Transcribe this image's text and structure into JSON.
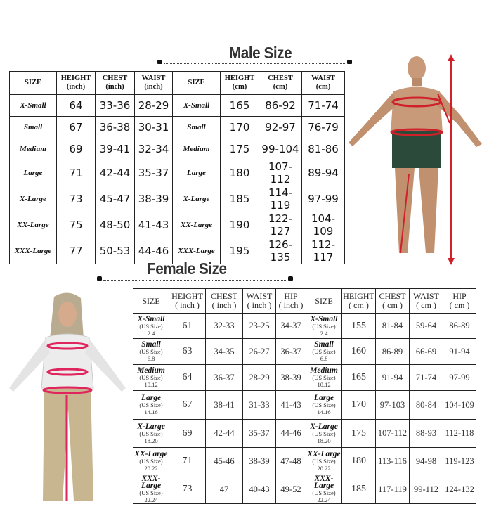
{
  "male": {
    "title": "Male Size",
    "headers": [
      [
        "SIZE",
        ""
      ],
      [
        "HEIGHT",
        "(inch)"
      ],
      [
        "CHEST",
        "(inch)"
      ],
      [
        "WAIST",
        "(inch)"
      ],
      [
        "SIZE",
        ""
      ],
      [
        "HEIGHT",
        "(cm)"
      ],
      [
        "CHEST",
        "(cm)"
      ],
      [
        "WAIST",
        "(cm)"
      ]
    ],
    "rows": [
      [
        "X-Small",
        "64",
        "33-36",
        "28-29",
        "X-Small",
        "165",
        "86-92",
        "71-74"
      ],
      [
        "Small",
        "67",
        "36-38",
        "30-31",
        "Small",
        "170",
        "92-97",
        "76-79"
      ],
      [
        "Medium",
        "69",
        "39-41",
        "32-34",
        "Medium",
        "175",
        "99-104",
        "81-86"
      ],
      [
        "Large",
        "71",
        "42-44",
        "35-37",
        "Large",
        "180",
        "107-112",
        "89-94"
      ],
      [
        "X-Large",
        "73",
        "45-47",
        "38-39",
        "X-Large",
        "185",
        "114-119",
        "97-99"
      ],
      [
        "XX-Large",
        "75",
        "48-50",
        "41-43",
        "XX-Large",
        "190",
        "122-127",
        "104-109"
      ],
      [
        "XXX-Large",
        "77",
        "50-53",
        "44-46",
        "XXX-Large",
        "195",
        "126-135",
        "112-117"
      ]
    ]
  },
  "female": {
    "title": "Female Size",
    "headers": [
      [
        "SIZE",
        ""
      ],
      [
        "HEIGHT",
        "( inch )"
      ],
      [
        "CHEST",
        "( inch )"
      ],
      [
        "WAIST",
        "( inch )"
      ],
      [
        "HIP",
        "( inch )"
      ],
      [
        "SIZE",
        ""
      ],
      [
        "HEIGHT",
        "( cm )"
      ],
      [
        "CHEST",
        "( cm )"
      ],
      [
        "WAIST",
        "( cm )"
      ],
      [
        "HIP",
        "( cm )"
      ]
    ],
    "us_label": "(US Size)",
    "rows": [
      {
        "size": "X-Small",
        "us": "2.4",
        "inch": [
          "61",
          "32-33",
          "23-25",
          "34-37"
        ],
        "cm": [
          "155",
          "81-84",
          "59-64",
          "86-89"
        ]
      },
      {
        "size": "Small",
        "us": "6.8",
        "inch": [
          "63",
          "34-35",
          "26-27",
          "36-37"
        ],
        "cm": [
          "160",
          "86-89",
          "66-69",
          "91-94"
        ]
      },
      {
        "size": "Medium",
        "us": "10.12",
        "inch": [
          "64",
          "36-37",
          "28-29",
          "38-39"
        ],
        "cm": [
          "165",
          "91-94",
          "71-74",
          "97-99"
        ]
      },
      {
        "size": "Large",
        "us": "14.16",
        "inch": [
          "67",
          "38-41",
          "31-33",
          "41-43"
        ],
        "cm": [
          "170",
          "97-103",
          "80-84",
          "104-109"
        ]
      },
      {
        "size": "X-Large",
        "us": "18.20",
        "inch": [
          "69",
          "42-44",
          "35-37",
          "44-46"
        ],
        "cm": [
          "175",
          "107-112",
          "88-93",
          "112-118"
        ]
      },
      {
        "size": "XX-Large",
        "us": "20.22",
        "inch": [
          "71",
          "45-46",
          "38-39",
          "47-48"
        ],
        "cm": [
          "180",
          "113-116",
          "94-98",
          "119-123"
        ]
      },
      {
        "size": "XXX-Large",
        "us": "22.24",
        "inch": [
          "73",
          "47",
          "40-43",
          "49-52"
        ],
        "cm": [
          "185",
          "117-119",
          "99-112",
          "124-132"
        ]
      }
    ]
  },
  "colors": {
    "measure": "#e0245e",
    "male_measure": "#d0202a",
    "shorts": "#2b4a3a",
    "skin": "#c89a7a"
  }
}
